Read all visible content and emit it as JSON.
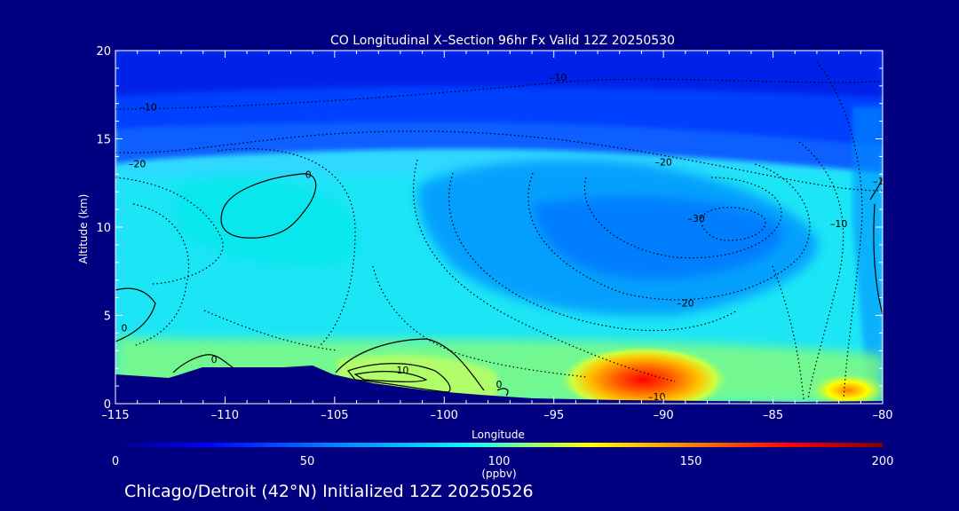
{
  "chart_data": {
    "type": "heatmap",
    "title": "CO Longitudinal X–Section 96hr  Fx Valid 12Z 20250530",
    "xlabel": "Longitude",
    "ylabel": "Altitude (km)",
    "xlim": [
      -115,
      -80
    ],
    "ylim": [
      0,
      20
    ],
    "x_ticks": [
      -115,
      -110,
      -105,
      -100,
      -95,
      -90,
      -85,
      -80
    ],
    "x_tick_labels": [
      "–115",
      "–110",
      "–105",
      "–100",
      "–95",
      "–90",
      "–85",
      "–80"
    ],
    "y_ticks": [
      0,
      5,
      10,
      15,
      20
    ],
    "y_tick_labels": [
      "0",
      "5",
      "10",
      "15",
      "20"
    ],
    "colorbar": {
      "label": "(ppbv)",
      "min": 0,
      "max": 200,
      "ticks": [
        0,
        50,
        100,
        150,
        200
      ],
      "tick_labels": [
        "0",
        "50",
        "100",
        "150",
        "200"
      ],
      "colors": [
        "#000080",
        "#0000ff",
        "#0080ff",
        "#00c0ff",
        "#00ffff",
        "#80ff80",
        "#ffff00",
        "#ff8000",
        "#ff0000",
        "#800000"
      ]
    },
    "contour_labels": [
      {
        "text": "–10",
        "x": -113.5,
        "y": 16.6
      },
      {
        "text": "–20",
        "x": -114.0,
        "y": 13.4
      },
      {
        "text": "0",
        "x": -106.2,
        "y": 12.8
      },
      {
        "text": "–10",
        "x": -94.8,
        "y": 18.3
      },
      {
        "text": "–20",
        "x": -90.0,
        "y": 13.5
      },
      {
        "text": "–30",
        "x": -88.5,
        "y": 10.3
      },
      {
        "text": "–10",
        "x": -82.0,
        "y": 10.0
      },
      {
        "text": "–20",
        "x": -89.0,
        "y": 5.5
      },
      {
        "text": "0",
        "x": -114.6,
        "y": 4.1
      },
      {
        "text": "0",
        "x": -110.5,
        "y": 2.3
      },
      {
        "text": "10",
        "x": -101.9,
        "y": 1.7
      },
      {
        "text": "0",
        "x": -97.5,
        "y": 0.9
      },
      {
        "text": "–10",
        "x": -90.3,
        "y": 0.2
      },
      {
        "text": "–1",
        "x": -80.2,
        "y": 12.4
      }
    ]
  },
  "footer": "Chicago/Detroit (42°N) Initialized 12Z 20250526"
}
